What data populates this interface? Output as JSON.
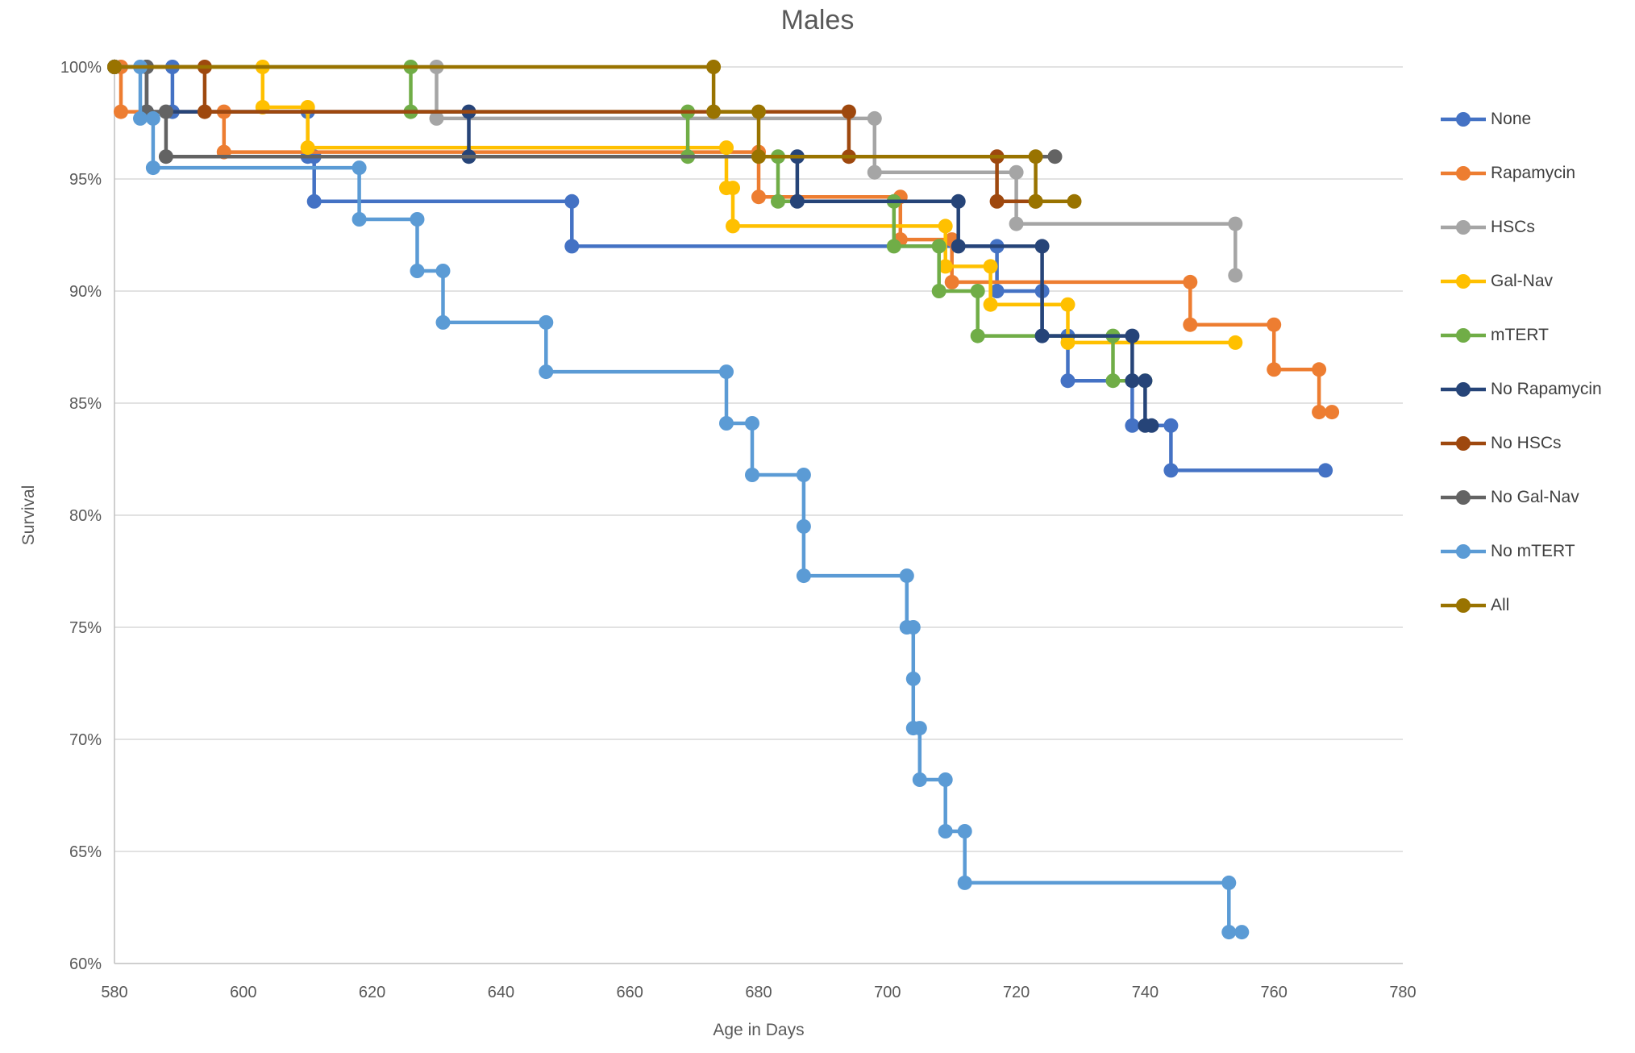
{
  "title": "Males",
  "axes": {
    "x": {
      "label": "Age in Days",
      "min": 580,
      "max": 780,
      "ticks": [
        580,
        600,
        620,
        640,
        660,
        680,
        700,
        720,
        740,
        760,
        780
      ]
    },
    "y": {
      "label": "Survival",
      "min": 60,
      "max": 100,
      "ticks": [
        {
          "value": 100,
          "label": "100%"
        },
        {
          "value": 95,
          "label": "95%"
        },
        {
          "value": 90,
          "label": "90%"
        },
        {
          "value": 85,
          "label": "85%"
        },
        {
          "value": 80,
          "label": "80%"
        },
        {
          "value": 75,
          "label": "75%"
        },
        {
          "value": 70,
          "label": "70%"
        },
        {
          "value": 65,
          "label": "65%"
        },
        {
          "value": 60,
          "label": "60%"
        }
      ]
    }
  },
  "legend": {
    "position": "right",
    "items": [
      "None",
      "Rapamycin",
      "HSCs",
      "Gal-Nav",
      "mTERT",
      "No Rapamycin",
      "No HSCs",
      "No Gal-Nav",
      "No mTERT",
      "All"
    ]
  },
  "style": {
    "grid_color": "#D9D9D9",
    "axis_color": "#BFBFBF",
    "text_color": "#595959",
    "title_color": "#595959",
    "legend_text_color": "#404040"
  },
  "chart_data": {
    "type": "line",
    "step": true,
    "title": "Males",
    "xlabel": "Age in Days",
    "ylabel": "Survival",
    "xlim": [
      580,
      780
    ],
    "ylim": [
      60,
      100
    ],
    "grid": true,
    "legend_position": "right",
    "series": [
      {
        "name": "None",
        "color": "#4472C4",
        "points": [
          [
            580,
            100
          ],
          [
            589,
            100
          ],
          [
            589,
            98
          ],
          [
            610,
            98
          ],
          [
            610,
            96
          ],
          [
            611,
            96
          ],
          [
            611,
            94
          ],
          [
            651,
            94
          ],
          [
            651,
            92
          ],
          [
            717,
            92
          ],
          [
            717,
            90
          ],
          [
            724,
            90
          ],
          [
            724,
            88
          ],
          [
            728,
            88
          ],
          [
            728,
            86
          ],
          [
            738,
            86
          ],
          [
            738,
            84
          ],
          [
            744,
            84
          ],
          [
            744,
            82
          ],
          [
            768,
            82
          ]
        ]
      },
      {
        "name": "Rapamycin",
        "color": "#ED7D31",
        "points": [
          [
            580,
            100
          ],
          [
            581,
            100
          ],
          [
            581,
            98
          ],
          [
            597,
            98
          ],
          [
            597,
            96.2
          ],
          [
            680,
            96.2
          ],
          [
            680,
            94.2
          ],
          [
            702,
            94.2
          ],
          [
            702,
            92.3
          ],
          [
            710,
            92.3
          ],
          [
            710,
            90.4
          ],
          [
            747,
            90.4
          ],
          [
            747,
            88.5
          ],
          [
            760,
            88.5
          ],
          [
            760,
            86.5
          ],
          [
            767,
            86.5
          ],
          [
            767,
            84.6
          ],
          [
            769,
            84.6
          ]
        ]
      },
      {
        "name": "HSCs",
        "color": "#A5A5A5",
        "points": [
          [
            580,
            100
          ],
          [
            630,
            100
          ],
          [
            630,
            97.7
          ],
          [
            698,
            97.7
          ],
          [
            698,
            95.3
          ],
          [
            720,
            95.3
          ],
          [
            720,
            93
          ],
          [
            754,
            93
          ],
          [
            754,
            90.7
          ]
        ]
      },
      {
        "name": "Gal-Nav",
        "color": "#FFC000",
        "points": [
          [
            580,
            100
          ],
          [
            603,
            100
          ],
          [
            603,
            98.2
          ],
          [
            610,
            98.2
          ],
          [
            610,
            96.4
          ],
          [
            675,
            96.4
          ],
          [
            675,
            94.6
          ],
          [
            676,
            94.6
          ],
          [
            676,
            92.9
          ],
          [
            709,
            92.9
          ],
          [
            709,
            91.1
          ],
          [
            716,
            91.1
          ],
          [
            716,
            89.4
          ],
          [
            728,
            89.4
          ],
          [
            728,
            87.7
          ],
          [
            754,
            87.7
          ]
        ]
      },
      {
        "name": "mTERT",
        "color": "#70AD47",
        "points": [
          [
            580,
            100
          ],
          [
            626,
            100
          ],
          [
            626,
            98
          ],
          [
            669,
            98
          ],
          [
            669,
            96
          ],
          [
            683,
            96
          ],
          [
            683,
            94
          ],
          [
            701,
            94
          ],
          [
            701,
            92
          ],
          [
            708,
            92
          ],
          [
            708,
            90
          ],
          [
            714,
            90
          ],
          [
            714,
            88
          ],
          [
            735,
            88
          ],
          [
            735,
            86
          ],
          [
            740,
            86
          ]
        ]
      },
      {
        "name": "No Rapamycin",
        "color": "#264478",
        "points": [
          [
            580,
            100
          ],
          [
            585,
            100
          ],
          [
            585,
            98
          ],
          [
            635,
            98
          ],
          [
            635,
            96
          ],
          [
            686,
            96
          ],
          [
            686,
            94
          ],
          [
            711,
            94
          ],
          [
            711,
            92
          ],
          [
            724,
            92
          ],
          [
            724,
            88
          ],
          [
            738,
            88
          ],
          [
            738,
            86
          ],
          [
            740,
            86
          ],
          [
            740,
            84
          ],
          [
            741,
            84
          ]
        ]
      },
      {
        "name": "No HSCs",
        "color": "#9E480E",
        "points": [
          [
            580,
            100
          ],
          [
            594,
            100
          ],
          [
            594,
            98
          ],
          [
            694,
            98
          ],
          [
            694,
            96
          ],
          [
            717,
            96
          ],
          [
            717,
            94
          ],
          [
            723,
            94
          ]
        ]
      },
      {
        "name": "No Gal-Nav",
        "color": "#636363",
        "points": [
          [
            580,
            100
          ],
          [
            585,
            100
          ],
          [
            585,
            98
          ],
          [
            588,
            98
          ],
          [
            588,
            96
          ],
          [
            726,
            96
          ]
        ]
      },
      {
        "name": "No mTERT",
        "color": "#5B9BD5",
        "points": [
          [
            580,
            100
          ],
          [
            584,
            100
          ],
          [
            584,
            97.7
          ],
          [
            586,
            97.7
          ],
          [
            586,
            95.5
          ],
          [
            618,
            95.5
          ],
          [
            618,
            93.2
          ],
          [
            627,
            93.2
          ],
          [
            627,
            90.9
          ],
          [
            631,
            90.9
          ],
          [
            631,
            88.6
          ],
          [
            647,
            88.6
          ],
          [
            647,
            86.4
          ],
          [
            675,
            86.4
          ],
          [
            675,
            84.1
          ],
          [
            679,
            84.1
          ],
          [
            679,
            81.8
          ],
          [
            687,
            81.8
          ],
          [
            687,
            79.5
          ],
          [
            687,
            77.3
          ],
          [
            703,
            77.3
          ],
          [
            703,
            75
          ],
          [
            704,
            75
          ],
          [
            704,
            72.7
          ],
          [
            704,
            70.5
          ],
          [
            705,
            70.5
          ],
          [
            705,
            68.2
          ],
          [
            709,
            68.2
          ],
          [
            709,
            65.9
          ],
          [
            712,
            65.9
          ],
          [
            712,
            63.6
          ],
          [
            753,
            63.6
          ],
          [
            753,
            61.4
          ],
          [
            755,
            61.4
          ]
        ]
      },
      {
        "name": "All",
        "color": "#997300",
        "points": [
          [
            580,
            100
          ],
          [
            673,
            100
          ],
          [
            673,
            98
          ],
          [
            680,
            98
          ],
          [
            680,
            96
          ],
          [
            723,
            96
          ],
          [
            723,
            94
          ],
          [
            729,
            94
          ]
        ]
      }
    ]
  }
}
